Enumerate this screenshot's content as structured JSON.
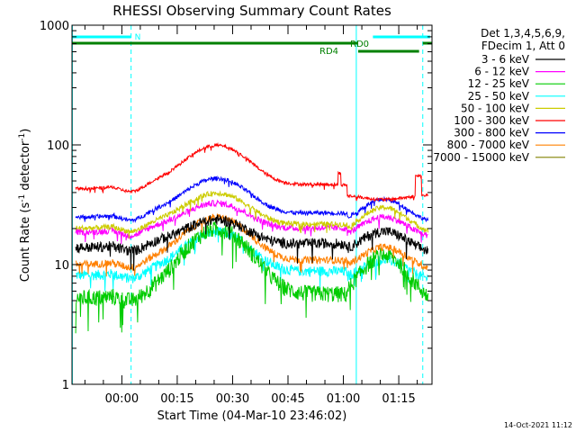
{
  "chart_data": {
    "type": "line",
    "title": "RHESSI Observing Summary Count Rates",
    "xlabel": "Start Time (04-Mar-10 23:46:02)",
    "ylabel_main": "Count Rate (s",
    "ylabel_sup1": "-1",
    "ylabel_mid": " detector",
    "ylabel_sup2": "-1",
    "ylabel_end": ")",
    "yscale": "log",
    "ylim": [
      1,
      1000
    ],
    "xlim_minutes": [
      -13.5,
      84
    ],
    "x_ticks": [
      {
        "label": "00:00",
        "m": 0
      },
      {
        "label": "00:15",
        "m": 15
      },
      {
        "label": "00:30",
        "m": 30
      },
      {
        "label": "00:45",
        "m": 45
      },
      {
        "label": "01:00",
        "m": 60
      },
      {
        "label": "01:15",
        "m": 75
      }
    ],
    "y_ticks": [
      {
        "label": "1",
        "v": 1
      },
      {
        "label": "10",
        "v": 10
      },
      {
        "label": "100",
        "v": 100
      },
      {
        "label": "1000",
        "v": 1000
      }
    ],
    "legend_header": [
      "Det 1,3,4,5,6,9,",
      "FDecim 1, Att 0"
    ],
    "series": [
      {
        "name": "3 - 6 keV",
        "color": "#000000",
        "base": 14.5,
        "peak": 24,
        "flare": 19,
        "noise": 0.1
      },
      {
        "name": "6 - 12 keV",
        "color": "#ff00ff",
        "base": 19.5,
        "peak": 33,
        "flare": 25,
        "noise": 0.06
      },
      {
        "name": "12 - 25 keV",
        "color": "#00cc00",
        "base": 5.5,
        "peak": 20,
        "flare": 12,
        "noise": 0.16
      },
      {
        "name": "25 - 50 keV",
        "color": "#00ffff",
        "base": 8.5,
        "peak": 19,
        "flare": 11,
        "noise": 0.1
      },
      {
        "name": "50 - 100 keV",
        "color": "#cccc00",
        "base": 21,
        "peak": 40,
        "flare": 30,
        "noise": 0.05
      },
      {
        "name": "100 - 300 keV",
        "color": "#ff0000",
        "base": 45,
        "peak": 100,
        "flare": 35,
        "noise": 0.03
      },
      {
        "name": "300 - 800 keV",
        "color": "#0000ff",
        "base": 26,
        "peak": 53,
        "flare": 35,
        "noise": 0.04
      },
      {
        "name": "800 - 7000 keV",
        "color": "#ff8000",
        "base": 10.5,
        "peak": 25,
        "flare": 14,
        "noise": 0.07
      },
      {
        "name": "7000 - 15000 keV",
        "color": "#808000",
        "base": 0,
        "peak": 0,
        "flare": 0,
        "noise": 0
      }
    ],
    "annotations": {
      "night_label": "N",
      "rd0_label": "RD0",
      "rd4_label": "RD4",
      "colors": {
        "night": "#00ffff",
        "data": "#008000",
        "cyan_line": "#00ffff"
      }
    }
  },
  "timestamp": "14-Oct-2021 11:12"
}
